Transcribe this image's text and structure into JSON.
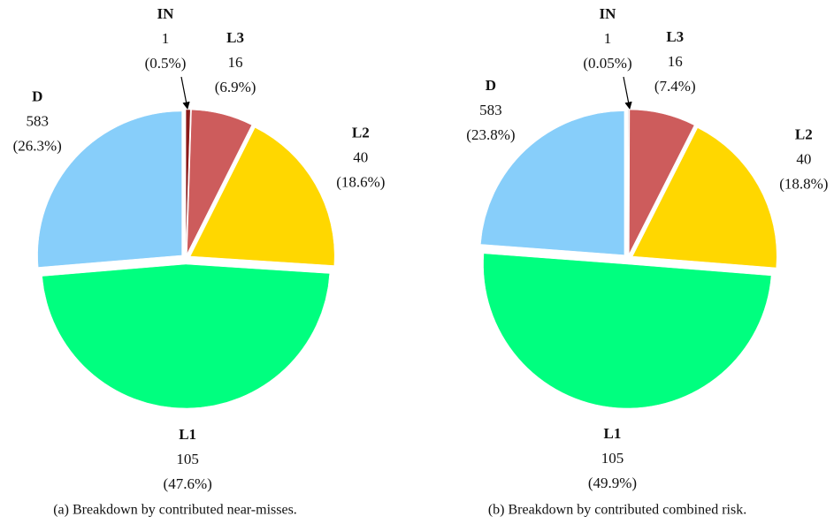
{
  "chart_data": [
    {
      "type": "pie",
      "names": [
        "IN",
        "L3",
        "L2",
        "L1",
        "D"
      ],
      "counts": [
        1,
        16,
        40,
        105,
        583
      ],
      "values": [
        0.5,
        6.9,
        18.6,
        47.6,
        26.3
      ],
      "value_labels": [
        "(0.5%)",
        "(6.9%)",
        "(18.6%)",
        "(47.6%)",
        "(26.3%)"
      ],
      "colors": [
        "#8b1a1a",
        "#cd5c5c",
        "#ffd700",
        "#00ff7f",
        "#87cefa"
      ],
      "caption": "(a)  Breakdown by contributed near-misses."
    },
    {
      "type": "pie",
      "names": [
        "IN",
        "L3",
        "L2",
        "L1",
        "D"
      ],
      "counts": [
        1,
        16,
        40,
        105,
        583
      ],
      "values": [
        0.05,
        7.4,
        18.8,
        49.9,
        23.8
      ],
      "value_labels": [
        "(0.05%)",
        "(7.4%)",
        "(18.8%)",
        "(49.9%)",
        "(23.8%)"
      ],
      "colors": [
        "#8b1a1a",
        "#cd5c5c",
        "#ffd700",
        "#00ff7f",
        "#87cefa"
      ],
      "caption": "(b)  Breakdown by contributed combined risk."
    }
  ]
}
